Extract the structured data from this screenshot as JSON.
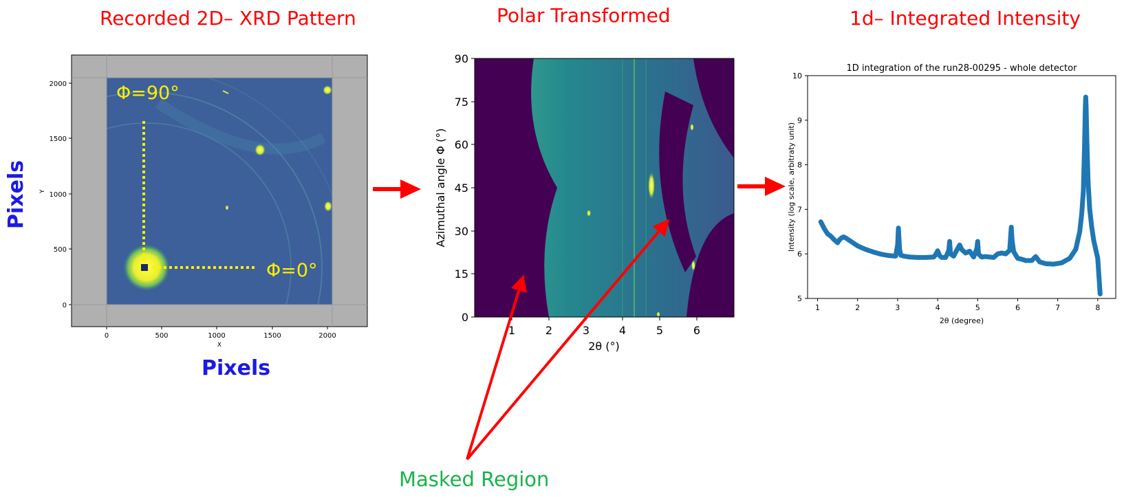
{
  "headings": {
    "xrd": "Recorded 2D– XRD Pattern",
    "polar": "Polar Transformed",
    "integrated": "1d– Integrated Intensity"
  },
  "labels": {
    "pixels_x": "Pixels",
    "pixels_y": "Pixels",
    "masked": "Masked Region"
  },
  "xrd_panel": {
    "x_axis_letter": "X",
    "y_axis_letter": "Y",
    "x_ticks": [
      "0",
      "500",
      "1000",
      "1500",
      "2000"
    ],
    "y_ticks": [
      "0",
      "500",
      "1000",
      "1500",
      "2000"
    ],
    "phi90": "Φ=90°",
    "phi0": "Φ=0°"
  },
  "polar_panel": {
    "xlabel": "2θ (°)",
    "ylabel": "Azimuthal angle Φ (°)",
    "x_ticks": [
      "1",
      "2",
      "3",
      "4",
      "5",
      "6"
    ],
    "y_ticks": [
      "0",
      "15",
      "30",
      "45",
      "60",
      "75",
      "90"
    ]
  },
  "colors": {
    "heading": "#ff0000",
    "arrow": "#ff0000",
    "pixels_label": "#1a1ae6",
    "masked_label": "#18b34a",
    "detector_bg": "#3d5f9a",
    "masked": "#440154",
    "marker": "#ffee00",
    "series": "#1f77b4"
  },
  "chart_data": {
    "type": "scatter",
    "title": "1D integration of the run28-00295 - whole detector",
    "xlabel": "2θ (degree)",
    "ylabel": "Intensity (log scale, arbitraty unit)",
    "xlim": [
      0.75,
      8.45
    ],
    "ylim": [
      5,
      10
    ],
    "x_ticks": [
      "1",
      "2",
      "3",
      "4",
      "5",
      "6",
      "7",
      "8"
    ],
    "y_ticks": [
      "5",
      "6",
      "7",
      "8",
      "9",
      "10"
    ],
    "grid": false,
    "series": [
      {
        "x": [
          1.08,
          1.12,
          1.16,
          1.2,
          1.25,
          1.3,
          1.35,
          1.4,
          1.5,
          1.55,
          1.6,
          1.65,
          1.7,
          1.8,
          1.9,
          2.0,
          2.2,
          2.4,
          2.6,
          2.8,
          2.95,
          3.0,
          3.02,
          3.03,
          3.05,
          3.08,
          3.15,
          3.3,
          3.5,
          3.7,
          3.9,
          3.95,
          4.0,
          4.05,
          4.1,
          4.2,
          4.28,
          4.3,
          4.32,
          4.4,
          4.5,
          4.55,
          4.6,
          4.7,
          4.8,
          4.9,
          4.98,
          5.0,
          5.02,
          5.1,
          5.2,
          5.3,
          5.4,
          5.5,
          5.6,
          5.7,
          5.8,
          5.84,
          5.86,
          5.9,
          6.0,
          6.1,
          6.2,
          6.35,
          6.45,
          6.55,
          6.7,
          6.9,
          7.1,
          7.3,
          7.45,
          7.55,
          7.6,
          7.64,
          7.67,
          7.69,
          7.7,
          7.71,
          7.73,
          7.76,
          7.8,
          7.85,
          7.9,
          7.95,
          8.0,
          8.03,
          8.06
        ],
        "y": [
          6.72,
          6.65,
          6.58,
          6.52,
          6.45,
          6.42,
          6.38,
          6.33,
          6.25,
          6.32,
          6.36,
          6.38,
          6.36,
          6.3,
          6.24,
          6.18,
          6.1,
          6.04,
          5.99,
          5.96,
          5.95,
          6.2,
          6.58,
          6.4,
          6.1,
          5.97,
          5.95,
          5.93,
          5.92,
          5.92,
          5.93,
          5.98,
          6.07,
          5.96,
          5.92,
          5.92,
          6.08,
          6.28,
          6.0,
          5.95,
          6.12,
          6.2,
          6.1,
          6.02,
          6.06,
          5.93,
          6.12,
          6.28,
          6.0,
          5.93,
          5.94,
          5.93,
          5.92,
          6.0,
          6.02,
          6.0,
          6.08,
          6.6,
          6.3,
          6.05,
          5.9,
          5.88,
          5.85,
          5.85,
          5.94,
          5.82,
          5.78,
          5.77,
          5.8,
          5.9,
          6.1,
          6.5,
          6.9,
          7.4,
          8.4,
          9.3,
          9.52,
          9.3,
          8.5,
          7.6,
          7.0,
          6.6,
          6.3,
          6.1,
          5.9,
          5.5,
          5.1
        ]
      }
    ]
  }
}
